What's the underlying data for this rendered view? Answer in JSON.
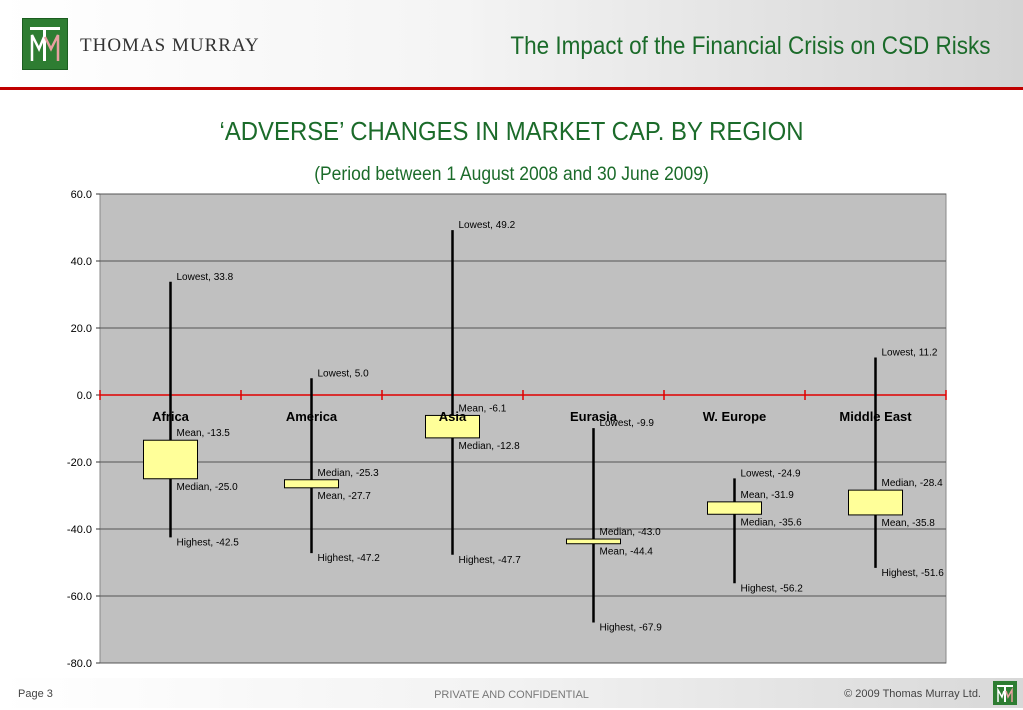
{
  "header": {
    "brand": "THOMAS MURRAY",
    "slide_title": "The Impact of the Financial Crisis on CSD Risks"
  },
  "footer": {
    "page": "Page 3",
    "confidential": "PRIVATE AND CONFIDENTIAL",
    "copyright": "© 2009 Thomas Murray Ltd."
  },
  "colors": {
    "brand_green": "#2e7d32",
    "title_green": "#1b6b2a",
    "accent_red": "#c00000",
    "plot_bg": "#c0c0c0",
    "box_fill": "#ffff99"
  },
  "chart_data": {
    "type": "box",
    "title": "‘ADVERSE’ CHANGES IN MARKET CAP. BY REGION",
    "subtitle": "(Period between 1 August 2008 and 30 June 2009)",
    "ylim": [
      -80,
      60
    ],
    "yticks": [
      60,
      40,
      20,
      0,
      -20,
      -40,
      -60,
      -80
    ],
    "ytick_labels": [
      "60.0",
      "40.0",
      "20.0",
      "0.0",
      "-20.0",
      "-40.0",
      "-60.0",
      "-80.0"
    ],
    "grid": true,
    "zero_line_color": "#e00000",
    "categories": [
      "Africa",
      "America",
      "Asia",
      "Eurasia",
      "W. Europe",
      "Middle East"
    ],
    "series": [
      {
        "region": "Africa",
        "lowest": 33.8,
        "mean": -13.5,
        "median": -25.0,
        "highest": -42.5,
        "labels": {
          "lowest": "Lowest, 33.8",
          "mean": "Mean, -13.5",
          "median": "Median, -25.0",
          "highest": "Highest, -42.5"
        }
      },
      {
        "region": "America",
        "lowest": 5.0,
        "mean": -27.7,
        "median": -25.3,
        "highest": -47.2,
        "labels": {
          "lowest": "Lowest, 5.0",
          "mean": "Mean, -27.7",
          "median": "Median, -25.3",
          "highest": "Highest, -47.2"
        }
      },
      {
        "region": "Asia",
        "lowest": 49.2,
        "mean": -6.1,
        "median": -12.8,
        "highest": -47.7,
        "labels": {
          "lowest": "Lowest, 49.2",
          "mean": "Mean, -6.1",
          "median": "Median, -12.8",
          "highest": "Highest, -47.7"
        }
      },
      {
        "region": "Eurasia",
        "lowest": -9.9,
        "mean": -44.4,
        "median": -43.0,
        "highest": -67.9,
        "labels": {
          "lowest": "Lowest, -9.9",
          "mean": "Mean, -44.4",
          "median": "Median, -43.0",
          "highest": "Highest, -67.9"
        }
      },
      {
        "region": "W. Europe",
        "lowest": -24.9,
        "mean": -31.9,
        "median": -35.6,
        "highest": -56.2,
        "labels": {
          "lowest": "Lowest, -24.9",
          "mean": "Mean, -31.9",
          "median": "Median, -35.6",
          "highest": "Highest, -56.2"
        }
      },
      {
        "region": "Middle East",
        "lowest": 11.2,
        "mean": -35.8,
        "median": -28.4,
        "highest": -51.6,
        "labels": {
          "lowest": "Lowest, 11.2",
          "mean": "Mean, -35.8",
          "median": "Median, -28.4",
          "highest": "Highest, -51.6"
        }
      }
    ]
  }
}
